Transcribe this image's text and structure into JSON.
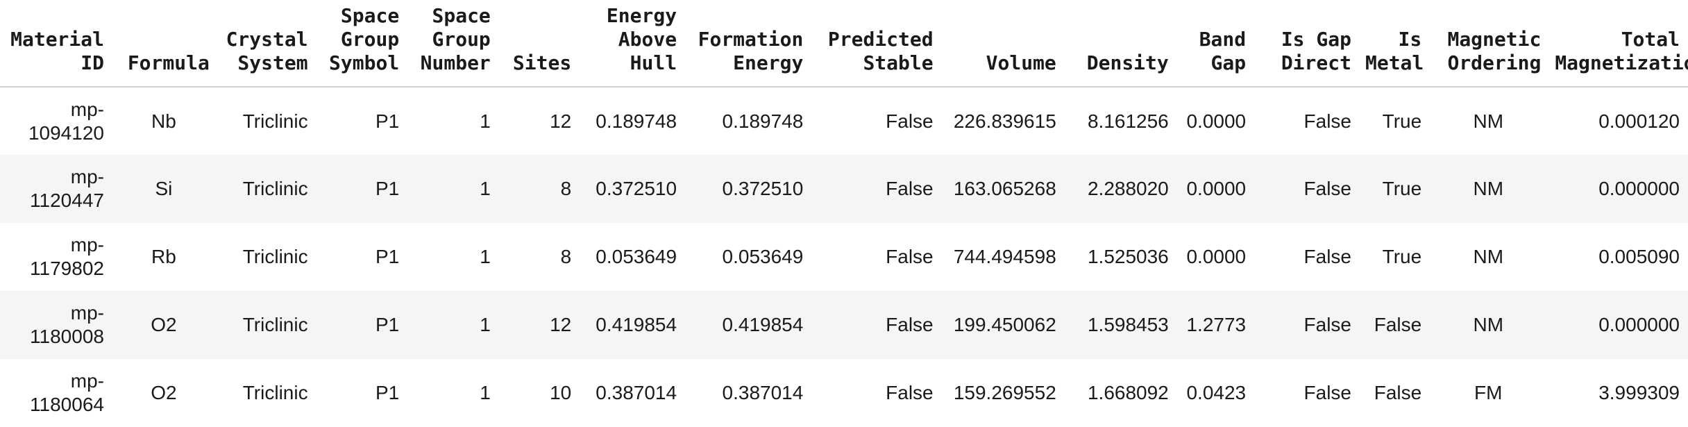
{
  "table": {
    "columns": [
      "Material\nID",
      "Formula",
      "Crystal\nSystem",
      "Space\nGroup\nSymbol",
      "Space\nGroup\nNumber",
      "Sites",
      "Energy\nAbove\nHull",
      "Formation\nEnergy",
      "Predicted\nStable",
      "Volume",
      "Density",
      "Band\nGap",
      "Is Gap\nDirect",
      "Is\nMetal",
      "Magnetic\nOrdering",
      "Total\nMagnetization"
    ],
    "rows": [
      {
        "id_top": "mp-",
        "id_bottom": "1094120",
        "formula": "Nb",
        "crystal_system": "Triclinic",
        "sg_symbol": "P1",
        "sg_number": "1",
        "sites": "12",
        "e_above_hull": "0.189748",
        "formation_energy": "0.189748",
        "predicted_stable": "False",
        "volume": "226.839615",
        "density": "8.161256",
        "band_gap": "0.0000",
        "is_gap_direct": "False",
        "is_metal": "True",
        "magnetic_ordering": "NM",
        "total_magnetization": "0.000120"
      },
      {
        "id_top": "mp-",
        "id_bottom": "1120447",
        "formula": "Si",
        "crystal_system": "Triclinic",
        "sg_symbol": "P1",
        "sg_number": "1",
        "sites": "8",
        "e_above_hull": "0.372510",
        "formation_energy": "0.372510",
        "predicted_stable": "False",
        "volume": "163.065268",
        "density": "2.288020",
        "band_gap": "0.0000",
        "is_gap_direct": "False",
        "is_metal": "True",
        "magnetic_ordering": "NM",
        "total_magnetization": "0.000000"
      },
      {
        "id_top": "mp-",
        "id_bottom": "1179802",
        "formula": "Rb",
        "crystal_system": "Triclinic",
        "sg_symbol": "P1",
        "sg_number": "1",
        "sites": "8",
        "e_above_hull": "0.053649",
        "formation_energy": "0.053649",
        "predicted_stable": "False",
        "volume": "744.494598",
        "density": "1.525036",
        "band_gap": "0.0000",
        "is_gap_direct": "False",
        "is_metal": "True",
        "magnetic_ordering": "NM",
        "total_magnetization": "0.005090"
      },
      {
        "id_top": "mp-",
        "id_bottom": "1180008",
        "formula": "O2",
        "crystal_system": "Triclinic",
        "sg_symbol": "P1",
        "sg_number": "1",
        "sites": "12",
        "e_above_hull": "0.419854",
        "formation_energy": "0.419854",
        "predicted_stable": "False",
        "volume": "199.450062",
        "density": "1.598453",
        "band_gap": "1.2773",
        "is_gap_direct": "False",
        "is_metal": "False",
        "magnetic_ordering": "NM",
        "total_magnetization": "0.000000"
      },
      {
        "id_top": "mp-",
        "id_bottom": "1180064",
        "formula": "O2",
        "crystal_system": "Triclinic",
        "sg_symbol": "P1",
        "sg_number": "1",
        "sites": "10",
        "e_above_hull": "0.387014",
        "formation_energy": "0.387014",
        "predicted_stable": "False",
        "volume": "159.269552",
        "density": "1.668092",
        "band_gap": "0.0423",
        "is_gap_direct": "False",
        "is_metal": "False",
        "magnetic_ordering": "FM",
        "total_magnetization": "3.999309"
      }
    ]
  }
}
